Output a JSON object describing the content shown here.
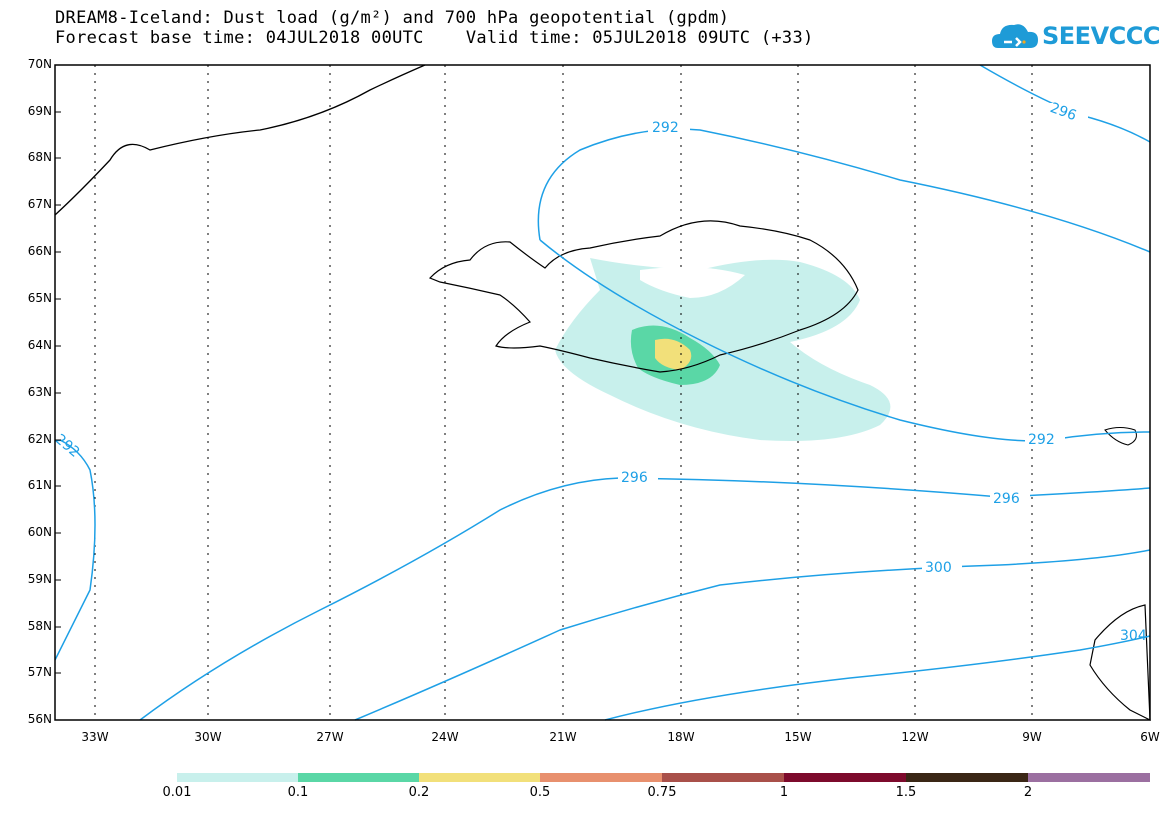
{
  "title": {
    "line1": "DREAM8-Iceland: Dust load (g/m²) and 700 hPa geopotential (gpdm)",
    "line2": "Forecast base time: 04JUL2018 00UTC    Valid time: 05JUL2018 09UTC (+33)"
  },
  "logo": {
    "text": "SEEVCCC",
    "icon": "cloud-icon",
    "color": "#1e9bd7"
  },
  "lat_labels": [
    "70N",
    "69N",
    "68N",
    "67N",
    "66N",
    "65N",
    "64N",
    "63N",
    "62N",
    "61N",
    "60N",
    "59N",
    "58N",
    "57N",
    "56N"
  ],
  "lon_labels": [
    "33W",
    "30W",
    "27W",
    "24W",
    "21W",
    "18W",
    "15W",
    "12W",
    "9W",
    "6W"
  ],
  "contour_labels": {
    "c292_top": "292",
    "c296_top": "296",
    "c292_right": "292",
    "c296_mid": "296",
    "c296_right": "296",
    "c300": "300",
    "c304": "304",
    "c292_left": "292"
  },
  "colorbar": {
    "labels": [
      "0.01",
      "0.1",
      "0.2",
      "0.5",
      "0.75",
      "1",
      "1.5",
      "2"
    ],
    "colors": [
      "#c8f0ec",
      "#5ad7a6",
      "#f2e07a",
      "#e8906e",
      "#a9504a",
      "#7d0a2c",
      "#3a2615",
      "#9b6fa0"
    ]
  },
  "dust_colors": {
    "low": "#c8f0ec",
    "mid": "#5ad7a6",
    "high": "#f2e07a"
  },
  "contour_color": "#1ea0e6"
}
